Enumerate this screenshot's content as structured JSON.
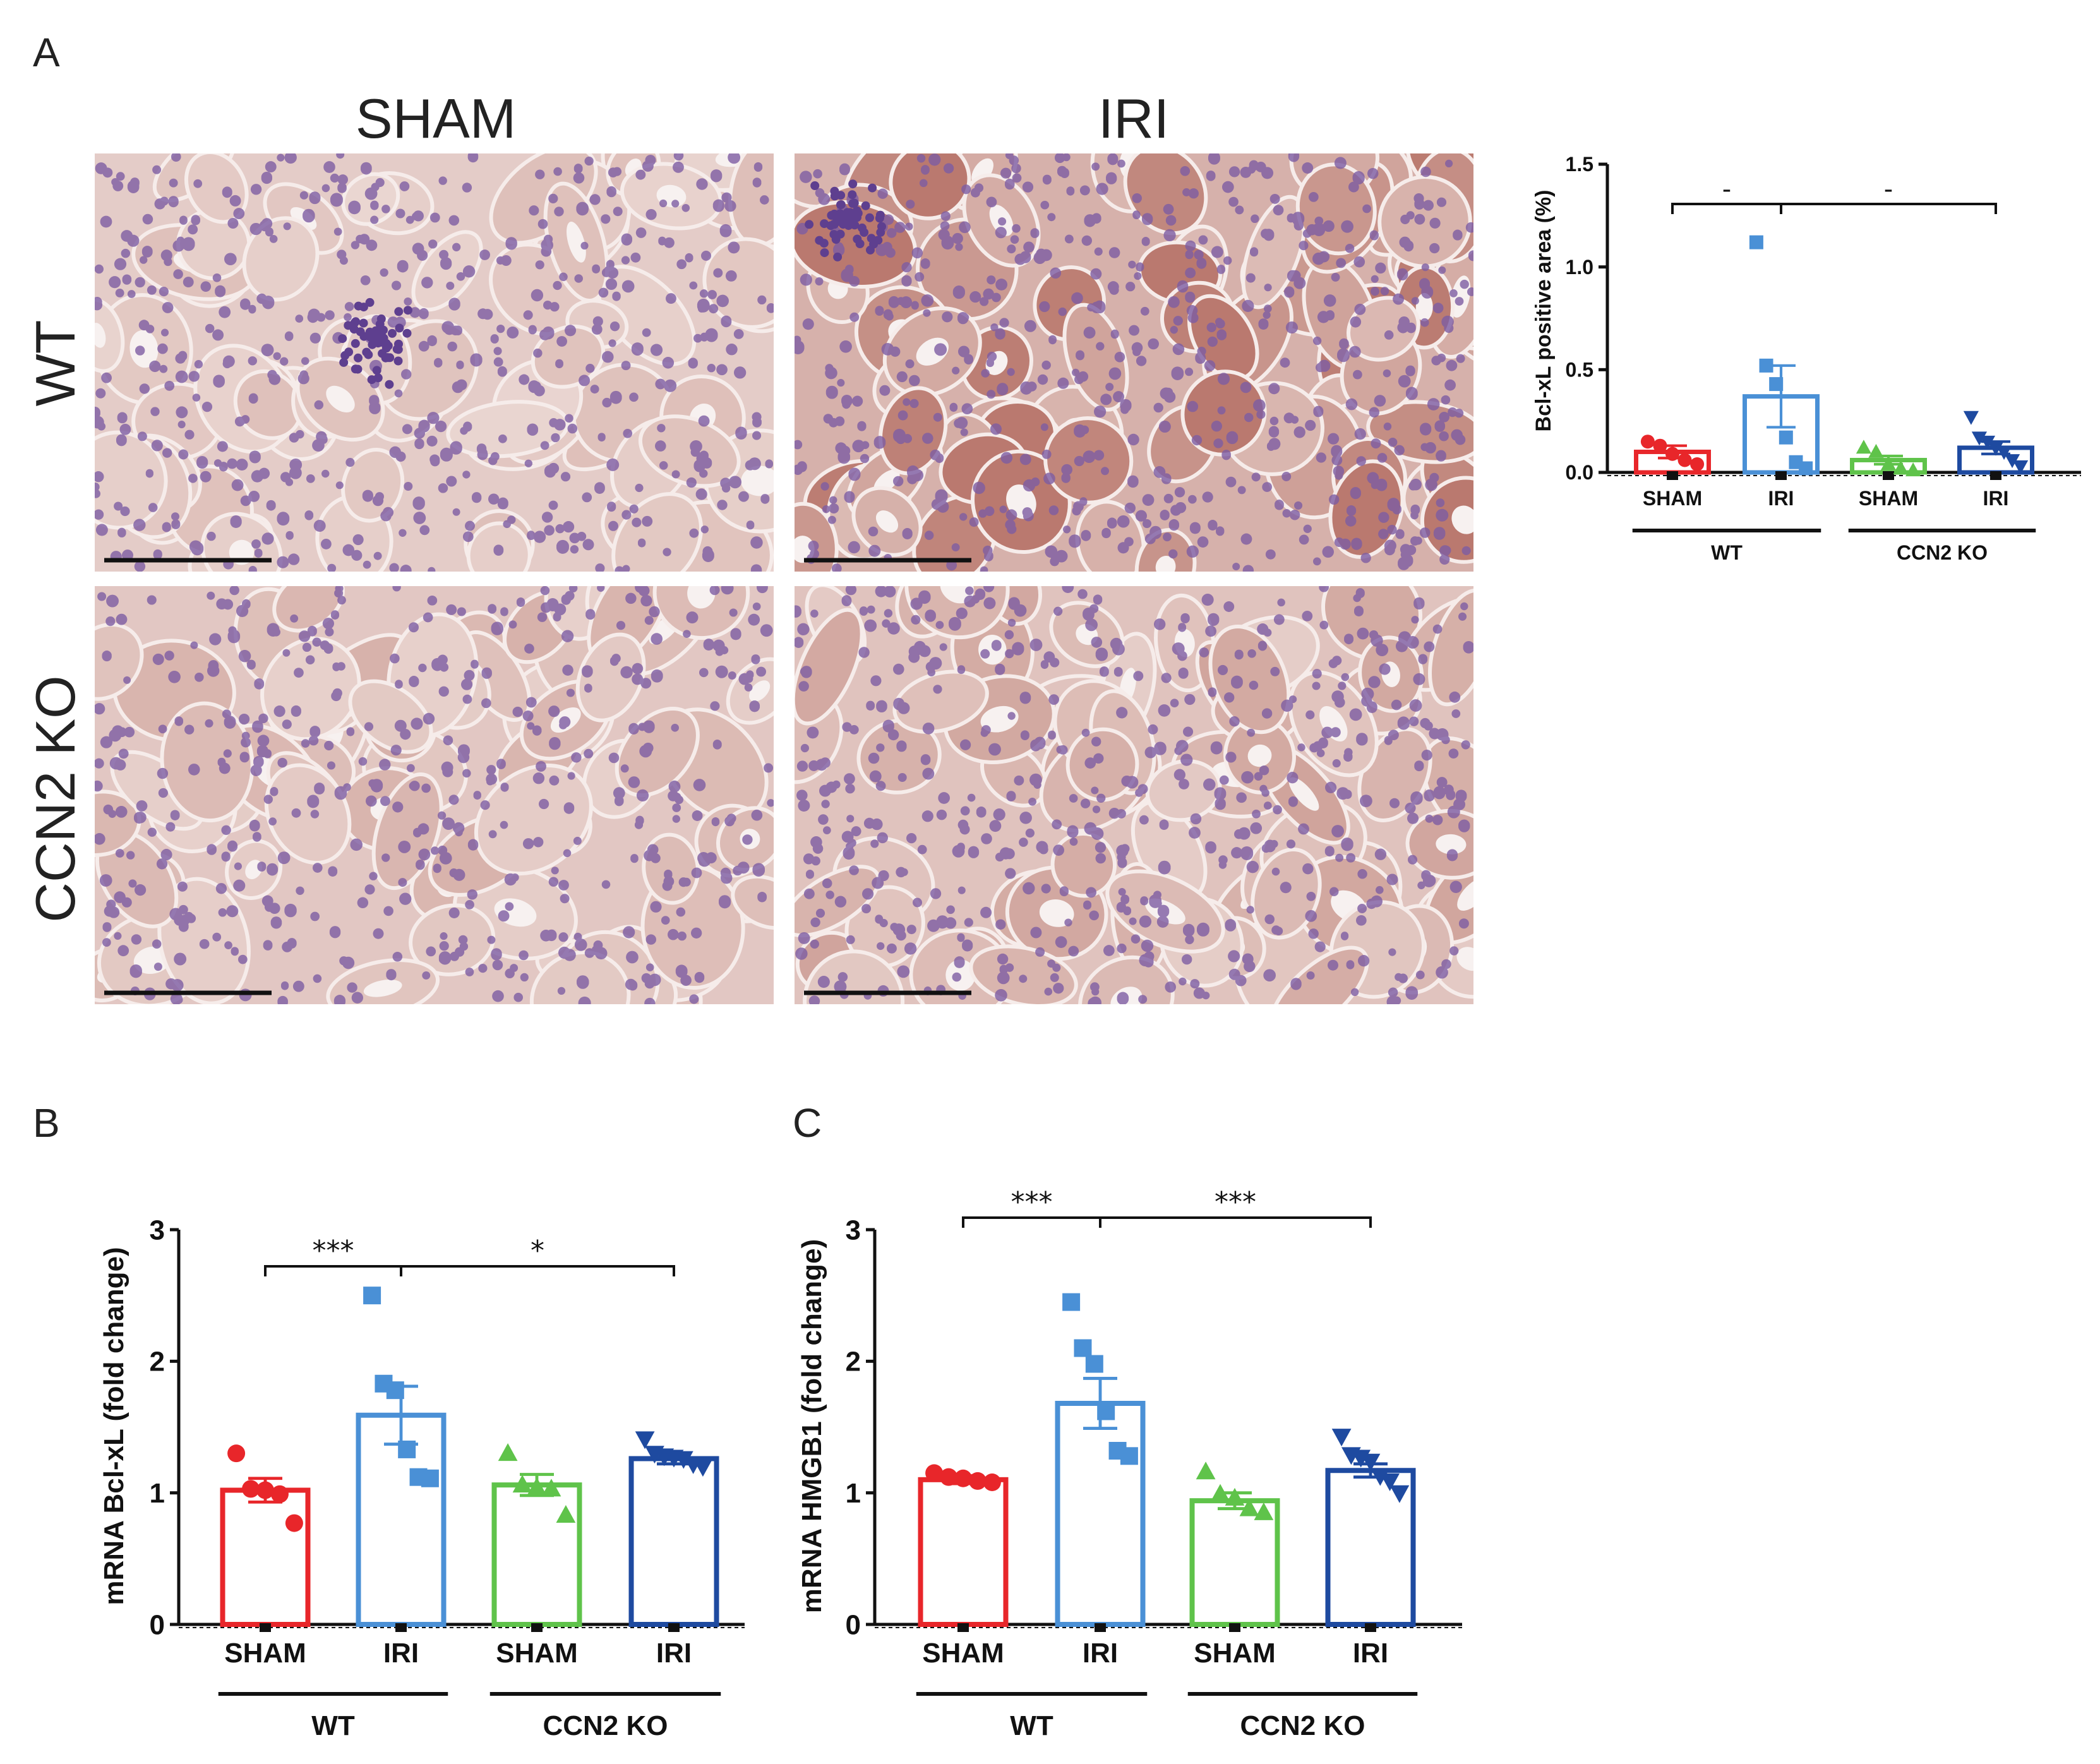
{
  "panel_labels": {
    "a": "A",
    "b": "B",
    "c": "C"
  },
  "micrographs": {
    "column_headers": [
      "SHAM",
      "IRI"
    ],
    "row_headers": [
      "WT",
      "CCN2 KO"
    ],
    "tiles": [
      {
        "row": 0,
        "col": 0,
        "stain_level": 0.25,
        "cells": 1.0,
        "glomerulus": true
      },
      {
        "row": 0,
        "col": 1,
        "stain_level": 0.85,
        "cells": 1.1,
        "glomerulus": true
      },
      {
        "row": 1,
        "col": 0,
        "stain_level": 0.35,
        "cells": 0.9,
        "glomerulus": false
      },
      {
        "row": 1,
        "col": 1,
        "stain_level": 0.45,
        "cells": 1.0,
        "glomerulus": false
      }
    ],
    "colors": {
      "background": "#ead7d4",
      "nucleus": "#7d5ca3",
      "stain": "#a8574a",
      "lumen": "#f7f1f0"
    }
  },
  "chart_data": [
    {
      "id": "A",
      "type": "bar",
      "ylabel": "Bcl-xL positive area (%)",
      "ylim": [
        0,
        1.5
      ],
      "yticks": [
        "0.0",
        "0.5",
        "1.0",
        "1.5"
      ],
      "categories": [
        "SHAM",
        "IRI",
        "SHAM",
        "IRI"
      ],
      "groups": [
        {
          "label": "WT",
          "span": [
            0,
            1
          ]
        },
        {
          "label": "CCN2  KO",
          "span": [
            2,
            3
          ]
        }
      ],
      "colors": [
        "#e8262a",
        "#4a90d6",
        "#5fc34a",
        "#1e4aa0"
      ],
      "markers": [
        "circle",
        "square",
        "triangle",
        "triangle-down"
      ],
      "values": [
        0.1,
        0.37,
        0.06,
        0.12
      ],
      "sem": [
        0.03,
        0.15,
        0.02,
        0.03
      ],
      "points": [
        [
          0.15,
          0.13,
          0.09,
          0.06,
          0.04
        ],
        [
          1.12,
          0.52,
          0.43,
          0.17,
          0.05,
          0.02
        ],
        [
          0.12,
          0.1,
          0.04,
          0.02,
          0.01
        ],
        [
          0.27,
          0.17,
          0.15,
          0.12,
          0.1,
          0.06,
          0.03
        ]
      ],
      "significance": [
        {
          "from": 0,
          "to": 1,
          "label": "-"
        },
        {
          "from": 1,
          "to": 3,
          "label": "-"
        }
      ]
    },
    {
      "id": "B",
      "type": "bar",
      "ylabel": "mRNA Bcl-xL (fold change)",
      "ylim": [
        0,
        3
      ],
      "yticks": [
        "0",
        "1",
        "2",
        "3"
      ],
      "categories": [
        "SHAM",
        "IRI",
        "SHAM",
        "IRI"
      ],
      "groups": [
        {
          "label": "WT",
          "span": [
            0,
            1
          ]
        },
        {
          "label": "CCN2 KO",
          "span": [
            2,
            3
          ]
        }
      ],
      "colors": [
        "#e8262a",
        "#4a90d6",
        "#5fc34a",
        "#1e4aa0"
      ],
      "markers": [
        "circle",
        "square",
        "triangle",
        "triangle-down"
      ],
      "values": [
        1.02,
        1.59,
        1.06,
        1.26
      ],
      "sem": [
        0.09,
        0.22,
        0.08,
        0.04
      ],
      "points": [
        [
          1.3,
          1.03,
          1.02,
          0.99,
          0.77
        ],
        [
          2.5,
          1.83,
          1.78,
          1.33,
          1.12,
          1.11
        ],
        [
          1.3,
          1.06,
          1.04,
          1.03,
          0.83
        ],
        [
          1.41,
          1.3,
          1.28,
          1.27,
          1.26,
          1.22,
          1.2
        ]
      ],
      "significance": [
        {
          "from": 0,
          "to": 1,
          "label": "***"
        },
        {
          "from": 1,
          "to": 3,
          "label": "*"
        }
      ]
    },
    {
      "id": "C",
      "type": "bar",
      "ylabel": "mRNA HMGB1 (fold change)",
      "ylim": [
        0,
        3
      ],
      "yticks": [
        "0",
        "1",
        "2",
        "3"
      ],
      "categories": [
        "SHAM",
        "IRI",
        "SHAM",
        "IRI"
      ],
      "groups": [
        {
          "label": "WT",
          "span": [
            0,
            1
          ]
        },
        {
          "label": "CCN2 KO",
          "span": [
            2,
            3
          ]
        }
      ],
      "colors": [
        "#e8262a",
        "#4a90d6",
        "#5fc34a",
        "#1e4aa0"
      ],
      "markers": [
        "circle",
        "square",
        "triangle",
        "triangle-down"
      ],
      "values": [
        1.1,
        1.68,
        0.94,
        1.17
      ],
      "sem": [
        0.03,
        0.19,
        0.06,
        0.05
      ],
      "points": [
        [
          1.15,
          1.12,
          1.11,
          1.09,
          1.08
        ],
        [
          2.45,
          2.1,
          1.98,
          1.62,
          1.32,
          1.28
        ],
        [
          1.16,
          0.99,
          0.96,
          0.88,
          0.85
        ],
        [
          1.43,
          1.29,
          1.27,
          1.24,
          1.13,
          1.09,
          1.0
        ]
      ],
      "significance": [
        {
          "from": 0,
          "to": 1,
          "label": "***"
        },
        {
          "from": 1,
          "to": 3,
          "label": "***"
        }
      ]
    }
  ]
}
